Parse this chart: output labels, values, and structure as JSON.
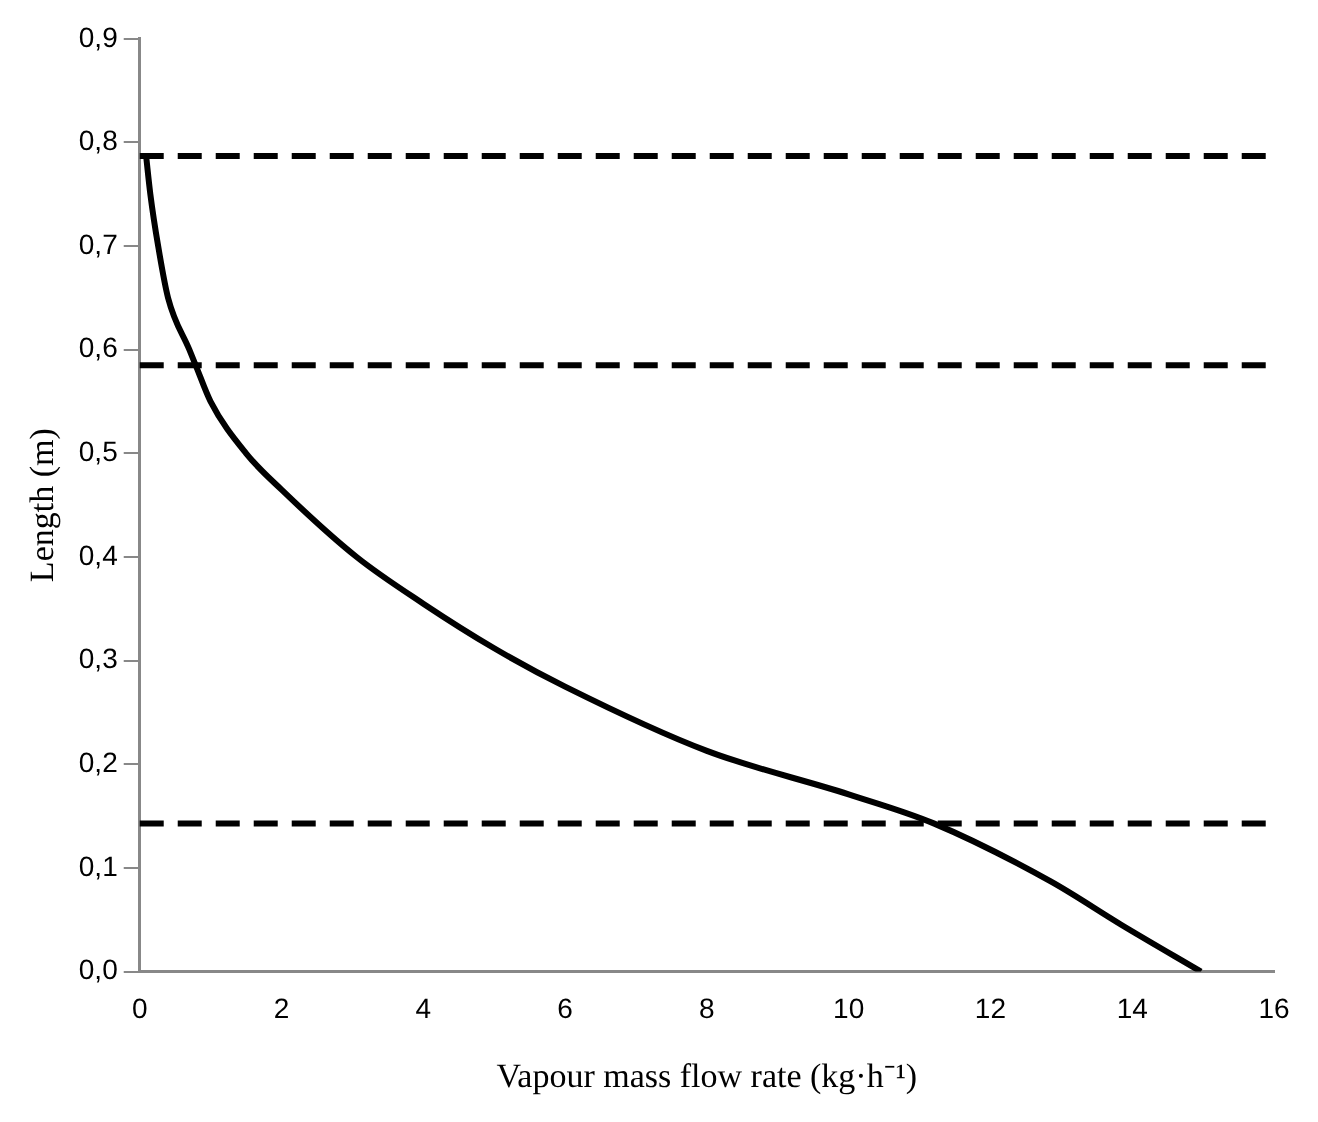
{
  "chart_data": {
    "type": "line",
    "xlabel": "Vapour mass flow rate (kg·h⁻¹)",
    "ylabel": "Length (m)",
    "series": [
      {
        "color": "#000000",
        "x": [
          14.97,
          13.85,
          12.85,
          11.2,
          10,
          8,
          6,
          5,
          4,
          3.06,
          2,
          1.5,
          1.0,
          0.79,
          0.7,
          0.4,
          0.26,
          0.15,
          0.09
        ],
        "values": [
          0,
          0.045,
          0.087,
          0.143,
          0.171,
          0.213,
          0.275,
          0.312,
          0.355,
          0.4,
          0.465,
          0.5,
          0.55,
          0.585,
          0.6,
          0.65,
          0.7,
          0.75,
          0.787
        ]
      }
    ],
    "xlim": [
      0,
      16
    ],
    "xticks": [
      0,
      2,
      4,
      6,
      8,
      10,
      12,
      14,
      16
    ],
    "ylim": [
      0,
      0.9
    ],
    "yticks": [
      {
        "value": 0,
        "label": "0,0"
      },
      {
        "value": 0.1,
        "label": "0,1"
      },
      {
        "value": 0.2,
        "label": "0,2"
      },
      {
        "value": 0.3,
        "label": "0,3"
      },
      {
        "value": 0.4,
        "label": "0,4"
      },
      {
        "value": 0.5,
        "label": "0,5"
      },
      {
        "value": 0.6,
        "label": "0,6"
      },
      {
        "value": 0.7,
        "label": "0,7"
      },
      {
        "value": 0.8,
        "label": "0,8"
      },
      {
        "value": 0.9,
        "label": "0,9"
      }
    ],
    "ref_lines": [
      {
        "axis": "y",
        "value": 0.787,
        "color": "#000000",
        "line_style": "dashed"
      },
      {
        "axis": "y",
        "value": 0.585,
        "color": "#000000",
        "line_style": "dashed"
      },
      {
        "axis": "y",
        "value": 0.143,
        "color": "#000000",
        "line_style": "dashed"
      }
    ],
    "grid": false,
    "legend": false,
    "marker": "none",
    "line_style": "solid"
  }
}
